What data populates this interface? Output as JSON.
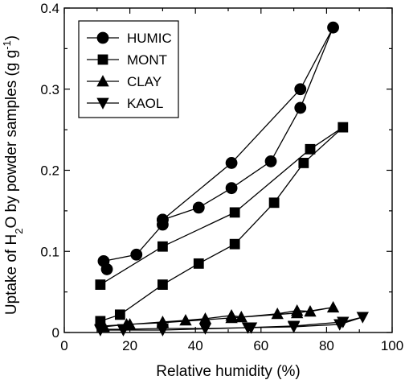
{
  "chart_data": {
    "type": "line",
    "xlabel": "Relative humidity (%)",
    "ylabel_parts": [
      "Uptake of H",
      "2",
      "O by powder samples (g g",
      "-1",
      ")"
    ],
    "xlim": [
      0,
      100
    ],
    "ylim": [
      0,
      0.4
    ],
    "x_ticks": [
      0,
      20,
      40,
      60,
      80,
      100
    ],
    "x_tick_labels": [
      "0",
      "20",
      "40",
      "60",
      "80",
      "100"
    ],
    "y_ticks": [
      0.0,
      0.1,
      0.2,
      0.3,
      0.4
    ],
    "y_tick_labels": [
      "0",
      "0.1",
      "0.2",
      "0.3",
      "0.4"
    ],
    "legend_position": "top-left",
    "series": [
      {
        "name": "HUMIC",
        "marker": "circle",
        "x": [
          13,
          12,
          22,
          30,
          30,
          41,
          51,
          63,
          72,
          82,
          72,
          51,
          30
        ],
        "y": [
          0.078,
          0.088,
          0.096,
          0.133,
          0.139,
          0.154,
          0.178,
          0.211,
          0.277,
          0.376,
          0.3,
          0.209,
          0.139
        ]
      },
      {
        "name": "MONT",
        "marker": "square",
        "x": [
          11,
          17,
          30,
          41,
          52,
          64,
          73,
          85,
          75,
          52,
          30,
          11
        ],
        "y": [
          0.014,
          0.022,
          0.059,
          0.085,
          0.109,
          0.16,
          0.209,
          0.253,
          0.226,
          0.148,
          0.106,
          0.059
        ]
      },
      {
        "name": "CLAY",
        "marker": "triangle-up",
        "x": [
          12,
          20,
          30,
          37,
          43,
          51,
          54,
          65,
          71,
          75,
          82,
          71,
          51,
          30,
          19,
          12
        ],
        "y": [
          0.008,
          0.01,
          0.013,
          0.015,
          0.017,
          0.021,
          0.019,
          0.023,
          0.027,
          0.026,
          0.031,
          0.024,
          0.018,
          0.012,
          0.01,
          0.007
        ]
      },
      {
        "name": "KAOL",
        "marker": "triangle-down",
        "x": [
          11,
          18,
          30,
          43,
          57,
          70,
          84,
          91,
          85,
          70,
          56,
          30,
          18,
          11
        ],
        "y": [
          0.004,
          0.004,
          0.005,
          0.005,
          0.006,
          0.007,
          0.01,
          0.019,
          0.013,
          0.008,
          0.006,
          0.003,
          0.003,
          0.003
        ]
      }
    ]
  }
}
